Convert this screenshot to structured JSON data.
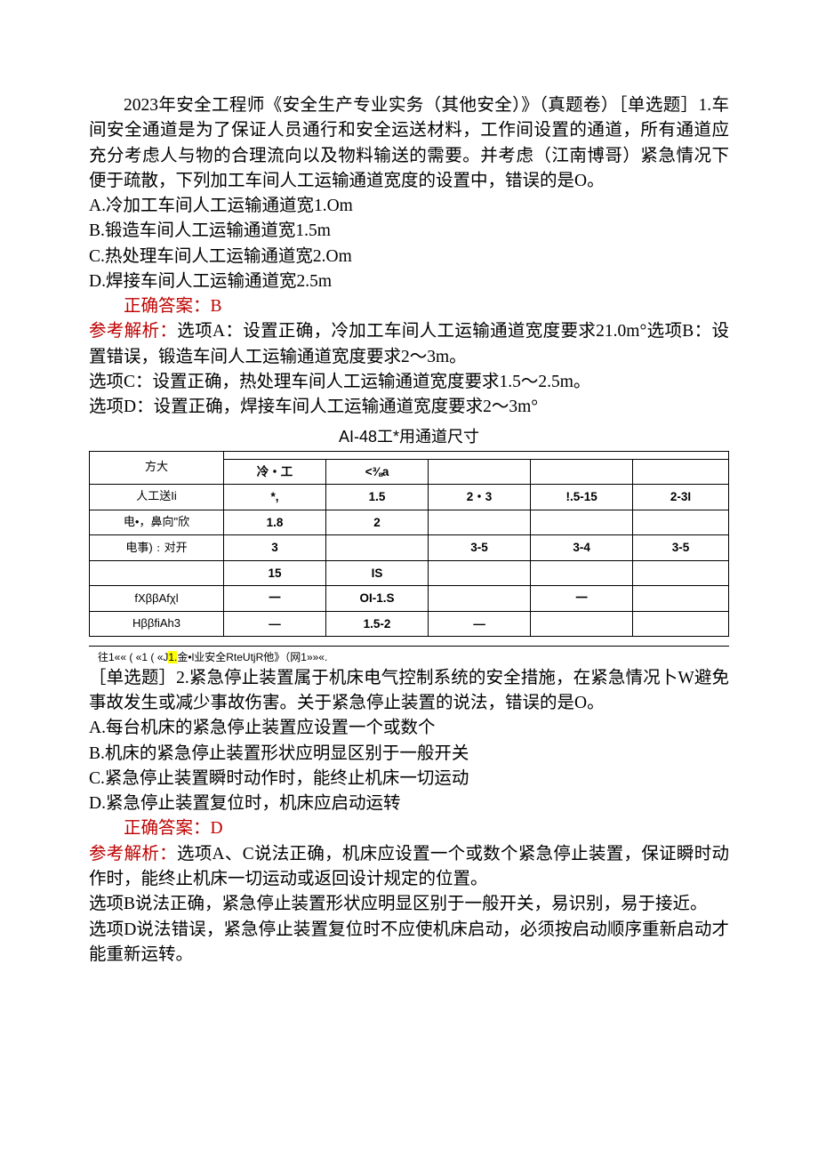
{
  "colors": {
    "text": "#000000",
    "accent": "#be0000",
    "highlight": "#ffff00",
    "border": "#000000",
    "background": "#ffffff"
  },
  "q1": {
    "lead_title": "2023年安全工程师《安全生产专业实务（其他安全）》（真题卷）［单选题］1.车间安全通道是为了保证人员通行和安全运送材料，工作间设置的通道，所有通道应充分考虑人与物的合理流向以及物料输送的需要。并考虑（江南博哥）紧急情况下便于疏散，下列加工车间人工运输通道宽度的设置中，错误的是O。",
    "optA": "A.冷加工车间人工运输通道宽1.Om",
    "optB": "B.锻造车间人工运输通道宽1.5m",
    "optC": "C.热处理车间人工运输通道宽2.Om",
    "optD": "D.焊接车间人工运输通道宽2.5m",
    "answer": "正确答案：B",
    "analysis_label": "参考解析：",
    "analysisA": "选项A：设置正确，冷加工车间人工运输通道宽度要求21.0m°选项B：设置错误，锻造车间人工运输通道宽度要求2～3m。",
    "analysisC": "选项C：设置正确，热处理车间人工运输通道宽度要求1.5～2.5m。",
    "analysisD": "选项D：设置正确，焊接车间人工运输通道宽度要求2～3m°"
  },
  "table": {
    "title": "AI-48工*用通道尺寸",
    "head_row1": "方大",
    "sub1": "冷・⼯",
    "sub2": "<⅜a",
    "rows": [
      {
        "h": "人工送Ii",
        "c1": "*,",
        "c2": "1.5",
        "c3": "2・3",
        "c4": "!.5-15",
        "c5": "2-3I"
      },
      {
        "h": "电•，鼻向\"欣",
        "c1": "1.8",
        "c2": "2",
        "c3": "",
        "c4": "",
        "c5": ""
      },
      {
        "h": "电事)﹕对开",
        "c1": "3",
        "c2": "",
        "c3": "3-5",
        "c4": "3-4",
        "c5": "3-5"
      },
      {
        "h": "",
        "c1": "15",
        "c2": "IS",
        "c3": "",
        "c4": "",
        "c5": ""
      },
      {
        "h": "fXββAfχl",
        "c1": "一",
        "c2": "OI-1.S",
        "c3": "",
        "c4": "一",
        "c5": ""
      },
      {
        "h": "HββfiAh3",
        "c1": "—",
        "c2": "1.5-2",
        "c3": "—",
        "c4": "",
        "c5": ""
      }
    ]
  },
  "footnote": {
    "pre": "往1«« ( «1 ( «J",
    "hl": "1.",
    "post": "金•l业安全RteUtjR他》（网1»»«."
  },
  "q2": {
    "stem": "［单选题］2.紧急停止装置属于机床电气控制系统的安全措施，在紧急情况卜W避免事故发生或减少事故伤害。关于紧急停止装置的说法，错误的是O。",
    "optA": "A.每台机床的紧急停止装置应设置一个或数个",
    "optB": "B.机床的紧急停止装置形状应明显区别于一般开关",
    "optC": "C.紧急停止装置瞬时动作时，能终止机床一切运动",
    "optD": "D.紧急停止装置复位时，机床应启动运转",
    "answer": "正确答案：D",
    "analysis_label": "参考解析：",
    "analysisAC": "选项A、C说法正确，机床应设置一个或数个紧急停止装置，保证瞬时动作时，能终止机床一切运动或返回设计规定的位置。",
    "analysisB": "选项B说法正确，紧急停止装置形状应明显区别于一般开关，易识别，易于接近。",
    "analysisD": "选项D说法错误，紧急停止装置复位时不应使机床启动，必须按启动顺序重新启动才能重新运转。"
  }
}
